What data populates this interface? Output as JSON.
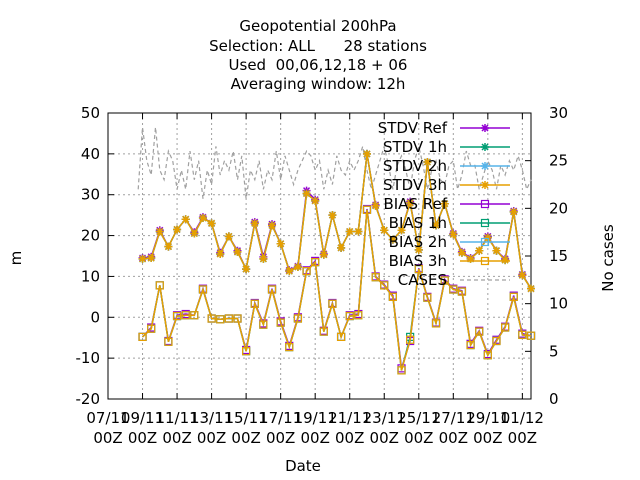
{
  "title_lines": [
    "Geopotential 200hPa",
    "Selection: ALL      28 stations",
    "Used  00,06,12,18 + 06",
    "Averaging window: 12h"
  ],
  "chart_data": {
    "type": "line",
    "xlabel": "Date",
    "ylabel": "m",
    "y2label": "No cases",
    "ylim": [
      -20,
      50
    ],
    "y2lim": [
      0,
      30
    ],
    "yticks": [
      -20,
      -10,
      0,
      10,
      20,
      30,
      40,
      50
    ],
    "y2ticks": [
      0,
      5,
      10,
      15,
      20,
      25,
      30
    ],
    "xticks": [
      {
        "x": 0,
        "l1": "07/11",
        "l2": "00Z"
      },
      {
        "x": 4,
        "l1": "09/11",
        "l2": "00Z"
      },
      {
        "x": 8,
        "l1": "11/11",
        "l2": "00Z"
      },
      {
        "x": 12,
        "l1": "13/11",
        "l2": "00Z"
      },
      {
        "x": 16,
        "l1": "15/11",
        "l2": "00Z"
      },
      {
        "x": 20,
        "l1": "17/11",
        "l2": "00Z"
      },
      {
        "x": 24,
        "l1": "19/11",
        "l2": "00Z"
      },
      {
        "x": 28,
        "l1": "21/11",
        "l2": "00Z"
      },
      {
        "x": 32,
        "l1": "23/11",
        "l2": "00Z"
      },
      {
        "x": 36,
        "l1": "25/11",
        "l2": "00Z"
      },
      {
        "x": 40,
        "l1": "27/11",
        "l2": "00Z"
      },
      {
        "x": 44,
        "l1": "29/11",
        "l2": "00Z"
      },
      {
        "x": 48,
        "l1": "01/12",
        "l2": "00Z"
      }
    ],
    "xlim": [
      0,
      49
    ],
    "x": [
      3.5,
      4,
      4.5,
      5,
      5.5,
      6,
      6.5,
      7,
      7.5,
      8,
      8.5,
      9,
      9.5,
      10,
      10.5,
      11,
      11.5,
      12,
      12.5,
      13,
      13.5,
      14,
      14.5,
      15,
      15.5,
      16,
      16.5,
      17,
      17.5,
      18,
      18.5,
      19,
      19.5,
      20,
      20.5,
      21,
      21.5,
      22,
      22.5,
      23,
      23.5,
      24,
      24.5,
      25,
      25.5,
      26,
      26.5,
      27,
      27.5,
      28,
      28.5,
      29,
      29.5,
      30,
      30.5,
      31,
      31.5,
      32,
      32.5,
      33,
      33.5,
      34,
      34.5,
      35,
      35.5,
      36,
      36.5,
      37,
      37.5,
      38,
      38.5,
      39,
      39.5,
      40,
      40.5,
      41,
      41.5,
      42,
      42.5,
      43,
      43.5,
      44,
      44.5,
      45,
      45.5,
      46,
      46.5,
      47,
      47.5,
      48,
      48.5,
      49
    ],
    "series": [
      {
        "name": "STDV Ref",
        "axis": "y1",
        "color": "#9400d3",
        "marker": "star",
        "x": [
          4,
          5,
          6,
          7,
          8,
          9,
          10,
          11,
          12,
          13,
          14,
          15,
          16,
          17,
          18,
          19,
          20,
          21,
          22,
          23,
          24,
          25,
          26,
          27,
          28,
          29,
          30,
          31,
          32,
          33,
          34,
          35,
          36,
          37,
          38,
          39,
          40,
          41,
          42,
          43,
          44,
          45,
          46,
          47,
          48,
          49
        ],
        "values": [
          14.5,
          14.8,
          21.3,
          17.3,
          21.5,
          24.0,
          20.8,
          24.5,
          23.0,
          15.8,
          19.8,
          16.3,
          11.8,
          23.3,
          14.8,
          22.8,
          18.0,
          11.5,
          12.5,
          31.0,
          28.8,
          15.5,
          25.0,
          17.0,
          21.0,
          21.0,
          40.0,
          27.5,
          21.3,
          19.0,
          21.3,
          28.3,
          16.5,
          38.0,
          22.5,
          27.8,
          20.5,
          16.0,
          14.5,
          16.3,
          19.8,
          16.3,
          14.3,
          26.0,
          10.5,
          7.0
        ]
      },
      {
        "name": "STDV 1h",
        "axis": "y1",
        "color": "#009e73",
        "marker": "star",
        "x": [
          4,
          5,
          6,
          7,
          8,
          9,
          10,
          11,
          12,
          13,
          14,
          15,
          16,
          17,
          18,
          19,
          20,
          21,
          22,
          23,
          24,
          25,
          26,
          27,
          28,
          29,
          30,
          31,
          32,
          33,
          34,
          35,
          36,
          37,
          38,
          39,
          40,
          41,
          42,
          43,
          44,
          45,
          46,
          47,
          48,
          49
        ],
        "values": [
          14.3,
          14.5,
          21.0,
          17.3,
          21.5,
          24.0,
          20.5,
          24.3,
          23.0,
          15.5,
          19.8,
          16.0,
          11.8,
          23.0,
          14.3,
          22.5,
          18.0,
          11.3,
          12.3,
          30.3,
          28.5,
          15.3,
          25.0,
          17.0,
          21.0,
          21.0,
          40.0,
          27.3,
          21.3,
          19.0,
          21.3,
          28.0,
          16.5,
          38.0,
          22.5,
          27.8,
          20.3,
          15.8,
          14.3,
          16.3,
          19.5,
          16.3,
          14.0,
          25.8,
          10.3,
          7.0
        ]
      },
      {
        "name": "STDV 2h",
        "axis": "y1",
        "color": "#56b4e9",
        "marker": "star",
        "x": [
          4,
          5,
          6,
          7,
          8,
          9,
          10,
          11,
          12,
          13,
          14,
          15,
          16,
          17,
          18,
          19,
          20,
          21,
          22,
          23,
          24,
          25,
          26,
          27,
          28,
          29,
          30,
          31,
          32,
          33,
          34,
          35,
          36,
          37,
          38,
          39,
          40,
          41,
          42,
          43,
          44,
          45,
          46,
          47,
          48,
          49
        ],
        "values": [
          14.3,
          14.5,
          21.0,
          17.3,
          21.5,
          24.0,
          20.5,
          24.3,
          23.0,
          15.5,
          19.8,
          16.0,
          11.8,
          23.0,
          14.3,
          22.5,
          18.0,
          11.3,
          12.3,
          30.3,
          28.5,
          15.3,
          25.0,
          17.0,
          21.0,
          21.0,
          40.0,
          27.3,
          21.3,
          19.0,
          21.3,
          28.0,
          16.5,
          38.0,
          22.5,
          27.8,
          20.3,
          15.8,
          14.3,
          16.3,
          19.5,
          16.3,
          14.0,
          25.8,
          10.3,
          7.0
        ]
      },
      {
        "name": "STDV 3h",
        "axis": "y1",
        "color": "#e69f00",
        "marker": "star",
        "x": [
          4,
          5,
          6,
          7,
          8,
          9,
          10,
          11,
          12,
          13,
          14,
          15,
          16,
          17,
          18,
          19,
          20,
          21,
          22,
          23,
          24,
          25,
          26,
          27,
          28,
          29,
          30,
          31,
          32,
          33,
          34,
          35,
          36,
          37,
          38,
          39,
          40,
          41,
          42,
          43,
          44,
          45,
          46,
          47,
          48,
          49
        ],
        "values": [
          14.3,
          14.5,
          21.0,
          17.3,
          21.5,
          24.0,
          20.5,
          24.3,
          23.0,
          15.5,
          19.8,
          16.0,
          11.8,
          23.0,
          14.3,
          22.5,
          18.0,
          11.3,
          12.3,
          30.3,
          28.5,
          15.3,
          25.0,
          17.0,
          21.0,
          21.0,
          40.0,
          27.3,
          21.3,
          19.0,
          21.3,
          28.0,
          16.5,
          38.0,
          22.5,
          27.8,
          20.3,
          15.8,
          14.3,
          16.3,
          19.5,
          16.3,
          14.0,
          25.8,
          10.3,
          7.0
        ]
      },
      {
        "name": "BIAS Ref",
        "axis": "y1",
        "color": "#9400d3",
        "marker": "square",
        "x": [
          4,
          5,
          6,
          7,
          8,
          9,
          10,
          11,
          12,
          13,
          14,
          15,
          16,
          17,
          18,
          19,
          20,
          21,
          22,
          23,
          24,
          25,
          26,
          27,
          28,
          29,
          30,
          31,
          32,
          33,
          34,
          35,
          36,
          37,
          38,
          39,
          40,
          41,
          42,
          43,
          44,
          45,
          46,
          47,
          48,
          49
        ],
        "values": [
          -4.8,
          -2.5,
          7.8,
          -5.8,
          0.5,
          0.8,
          0.5,
          7.0,
          -0.3,
          -0.5,
          -0.3,
          -0.3,
          -8.0,
          3.5,
          -1.5,
          7.0,
          -1.0,
          -7.0,
          0.0,
          11.5,
          13.8,
          -3.3,
          3.5,
          -4.8,
          0.5,
          0.8,
          26.5,
          10.0,
          8.0,
          5.3,
          -12.5,
          -5.8,
          12.0,
          5.0,
          -1.3,
          9.3,
          7.0,
          6.5,
          -6.5,
          -3.3,
          -9.0,
          -5.5,
          -2.3,
          5.3,
          -4.0,
          -4.5
        ]
      },
      {
        "name": "BIAS 1h",
        "axis": "y1",
        "color": "#009e73",
        "marker": "square",
        "x": [
          4,
          5,
          6,
          7,
          8,
          9,
          10,
          11,
          12,
          13,
          14,
          15,
          16,
          17,
          18,
          19,
          20,
          21,
          22,
          23,
          24,
          25,
          26,
          27,
          28,
          29,
          30,
          31,
          32,
          33,
          34,
          35,
          36,
          37,
          38,
          39,
          40,
          41,
          42,
          43,
          44,
          45,
          46,
          47,
          48,
          49
        ],
        "values": [
          -4.8,
          -2.8,
          7.8,
          -6.0,
          0.3,
          0.5,
          0.5,
          6.8,
          -0.3,
          -0.5,
          -0.3,
          -0.3,
          -8.3,
          3.3,
          -1.8,
          6.8,
          -1.3,
          -7.3,
          -0.3,
          11.3,
          13.5,
          -3.5,
          3.3,
          -4.8,
          0.3,
          0.5,
          26.3,
          9.8,
          7.8,
          5.0,
          -13.0,
          -4.8,
          11.8,
          4.8,
          -1.5,
          9.0,
          6.8,
          6.3,
          -6.8,
          -3.5,
          -9.3,
          -5.8,
          -2.5,
          5.0,
          -4.3,
          -4.5
        ]
      },
      {
        "name": "BIAS 2h",
        "axis": "y1",
        "color": "#56b4e9",
        "marker": "square",
        "x": [
          4,
          5,
          6,
          7,
          8,
          9,
          10,
          11,
          12,
          13,
          14,
          15,
          16,
          17,
          18,
          19,
          20,
          21,
          22,
          23,
          24,
          25,
          26,
          27,
          28,
          29,
          30,
          31,
          32,
          33,
          34,
          35,
          36,
          37,
          38,
          39,
          40,
          41,
          42,
          43,
          44,
          45,
          46,
          47,
          48,
          49
        ],
        "values": [
          -4.8,
          -2.8,
          7.8,
          -6.0,
          0.3,
          0.5,
          0.5,
          6.8,
          -0.3,
          -0.5,
          -0.3,
          -0.3,
          -8.3,
          3.3,
          -1.8,
          6.8,
          -1.3,
          -7.3,
          -0.3,
          11.3,
          13.5,
          -3.5,
          3.3,
          -4.8,
          0.3,
          0.5,
          26.3,
          9.8,
          7.8,
          5.0,
          -13.0,
          -5.5,
          11.8,
          4.8,
          -1.5,
          9.0,
          6.8,
          6.3,
          -6.8,
          -3.5,
          -9.3,
          -5.8,
          -2.5,
          5.0,
          -4.3,
          -4.5
        ]
      },
      {
        "name": "BIAS 3h",
        "axis": "y1",
        "color": "#e69f00",
        "marker": "square",
        "x": [
          4,
          5,
          6,
          7,
          8,
          9,
          10,
          11,
          12,
          13,
          14,
          15,
          16,
          17,
          18,
          19,
          20,
          21,
          22,
          23,
          24,
          25,
          26,
          27,
          28,
          29,
          30,
          31,
          32,
          33,
          34,
          35,
          36,
          37,
          38,
          39,
          40,
          41,
          42,
          43,
          44,
          45,
          46,
          47,
          48,
          49
        ],
        "values": [
          -4.8,
          -2.8,
          7.8,
          -6.0,
          0.3,
          0.5,
          0.5,
          6.8,
          -0.3,
          -0.5,
          -0.3,
          -0.3,
          -8.3,
          3.3,
          -1.8,
          6.8,
          -1.3,
          -7.3,
          -0.3,
          11.3,
          13.5,
          -3.5,
          3.3,
          -4.8,
          0.3,
          0.5,
          26.3,
          9.8,
          7.8,
          5.0,
          -13.0,
          -5.5,
          11.8,
          4.8,
          -1.5,
          9.0,
          6.8,
          6.3,
          -6.8,
          -3.5,
          -9.3,
          -5.8,
          -2.5,
          5.0,
          -4.3,
          -4.5
        ]
      },
      {
        "name": "CASES",
        "axis": "y2",
        "color": "#a0a0a0",
        "marker": "none",
        "dashed": true,
        "x": [
          3.5,
          4,
          4.5,
          5,
          5.5,
          6,
          6.5,
          7,
          7.5,
          8,
          8.5,
          9,
          9.5,
          10,
          10.5,
          11,
          11.5,
          12,
          12.5,
          13,
          13.5,
          14,
          14.5,
          15,
          15.5,
          16,
          16.5,
          17,
          17.5,
          18,
          18.5,
          19,
          19.5,
          20,
          20.5,
          21,
          21.5,
          22,
          22.5,
          23,
          23.5,
          24,
          24.5,
          25,
          25.5,
          26,
          26.5,
          27,
          27.5,
          28,
          28.5,
          29,
          29.5,
          30,
          30.5,
          31,
          31.5,
          32,
          32.5,
          33,
          33.5,
          34,
          34.5,
          35,
          35.5,
          36,
          36.5,
          37,
          37.5,
          38,
          38.5,
          39,
          39.5,
          40,
          40.5,
          41,
          41.5,
          42,
          42.5,
          43,
          43.5,
          44,
          44.5,
          45,
          45.5,
          46,
          46.5,
          47,
          47.5,
          48,
          48.5,
          49
        ],
        "values": [
          22,
          28.5,
          25,
          23.5,
          28.5,
          24,
          23,
          26,
          25,
          22,
          24,
          22,
          26,
          23,
          25,
          21,
          24,
          22.5,
          26.5,
          23.5,
          25,
          24,
          26,
          23,
          25.5,
          21,
          24,
          23,
          25,
          22,
          24,
          23,
          26,
          23,
          25.5,
          24,
          22.5,
          24,
          25,
          26,
          25.5,
          24,
          25,
          22,
          24,
          22.5,
          25.5,
          24,
          23.5,
          25,
          24,
          25,
          26.5,
          24,
          22,
          23.5,
          25,
          26.5,
          24.5,
          22,
          24.5,
          25.5,
          24,
          22,
          25,
          26.5,
          24.5,
          22,
          24,
          25,
          23,
          22.5,
          24.5,
          25,
          22,
          23.5,
          26,
          24.5,
          24.5,
          22,
          23.5,
          25,
          24,
          22,
          24.5,
          23.5,
          25,
          24,
          25.5,
          24,
          22,
          23
        ]
      }
    ]
  }
}
